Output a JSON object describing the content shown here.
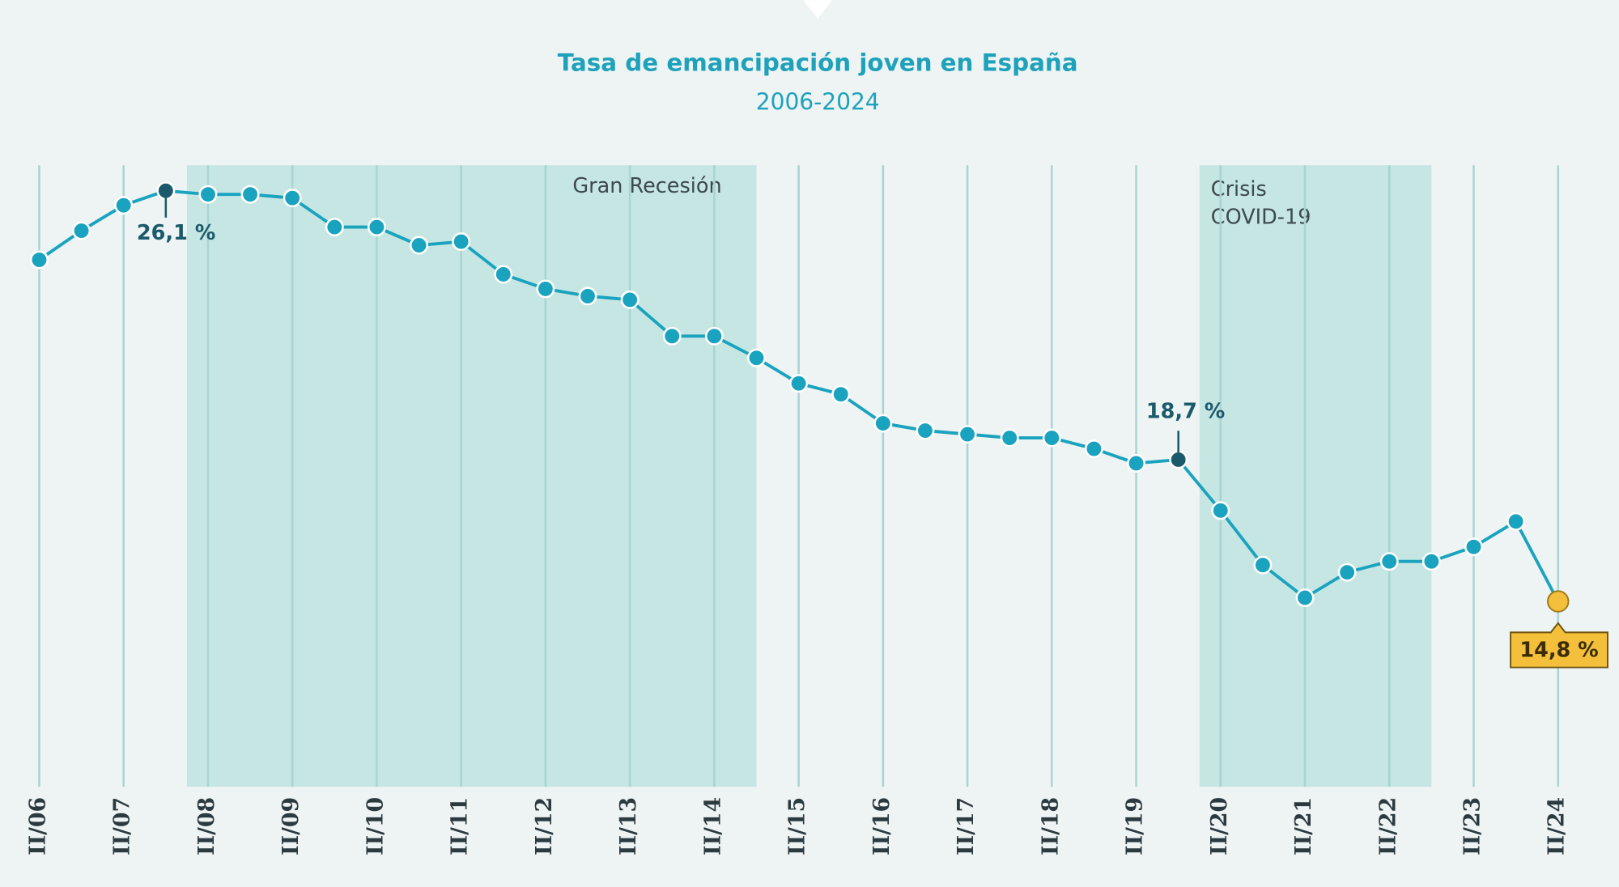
{
  "chart_data": {
    "type": "line",
    "title": "Tasa de emancipación joven en España",
    "subtitle": "2006-2024",
    "categories": [
      "II/06",
      null,
      "II/07",
      null,
      "II/08",
      null,
      "II/09",
      null,
      "II/10",
      null,
      "II/11",
      null,
      "II/12",
      null,
      "II/13",
      null,
      "II/14",
      null,
      "II/15",
      null,
      "II/16",
      null,
      "II/17",
      null,
      "II/18",
      null,
      "II/19",
      null,
      "II/20",
      null,
      "II/21",
      null,
      "II/22",
      null,
      "II/23",
      null,
      "II/24"
    ],
    "series": [
      {
        "name": "Tasa de emancipación",
        "color": "#1aa3bf",
        "values": [
          24.2,
          25.0,
          25.7,
          26.1,
          26.0,
          26.0,
          25.9,
          25.1,
          25.1,
          24.6,
          24.7,
          23.8,
          23.4,
          23.2,
          23.1,
          22.1,
          22.1,
          21.5,
          20.8,
          20.5,
          19.7,
          19.5,
          19.4,
          19.3,
          19.3,
          19.0,
          18.6,
          18.7,
          17.3,
          15.8,
          14.9,
          15.6,
          15.9,
          15.9,
          16.3,
          17.0,
          14.8
        ],
        "value_labels": [
          null,
          null,
          null,
          "26,1 %",
          null,
          null,
          null,
          null,
          null,
          null,
          null,
          null,
          null,
          null,
          null,
          null,
          null,
          null,
          null,
          null,
          null,
          null,
          null,
          null,
          null,
          null,
          null,
          "18,7 %",
          null,
          null,
          null,
          null,
          null,
          null,
          null,
          null,
          "14,8 %"
        ]
      }
    ],
    "ylim": [
      9.7,
      26.8
    ],
    "bands": [
      {
        "label": [
          "Gran Recesión"
        ],
        "start": 3.5,
        "end": 17
      },
      {
        "label": [
          "Crisis",
          "COVID-19"
        ],
        "start": 27.5,
        "end": 33
      }
    ],
    "band_color": "#c6e6e3",
    "grid_color": "#a8d5d2",
    "annotation_color": "#1b5a6b",
    "highlight_color": "#f4bf3a"
  }
}
